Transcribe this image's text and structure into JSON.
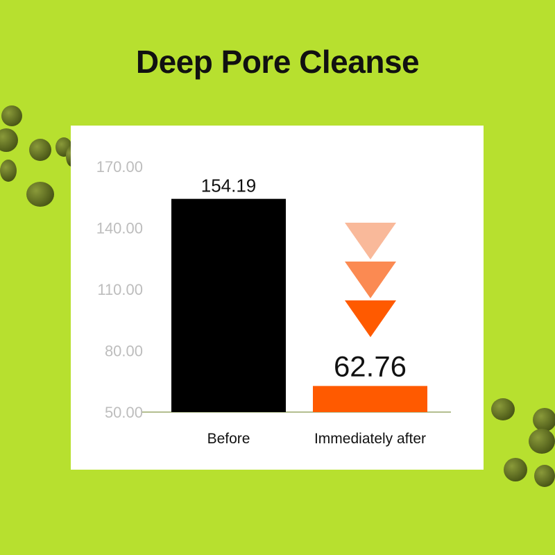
{
  "title": "Deep Pore Cleanse",
  "colors": {
    "background": "#b7e02f",
    "before_bar": "#000000",
    "after_bar": "#ff5a00",
    "arrows": [
      "#f9b99a",
      "#fb8a52",
      "#ff5a00"
    ],
    "tick_label": "#bdbdbd"
  },
  "chart_data": {
    "type": "bar",
    "title": "Deep Pore Cleanse",
    "categories": [
      "Before",
      "Immediately after"
    ],
    "values": [
      154.19,
      62.76
    ],
    "value_labels": [
      "154.19",
      "62.76"
    ],
    "ylim": [
      50,
      170
    ],
    "yticks": [
      50,
      80,
      110,
      140,
      170
    ],
    "ytick_labels": [
      "50.00",
      "80.00",
      "110.00",
      "140.00",
      "170.00"
    ],
    "grid": false,
    "annotation": "three downward arrows above the 'Immediately after' bar indicating decrease"
  }
}
